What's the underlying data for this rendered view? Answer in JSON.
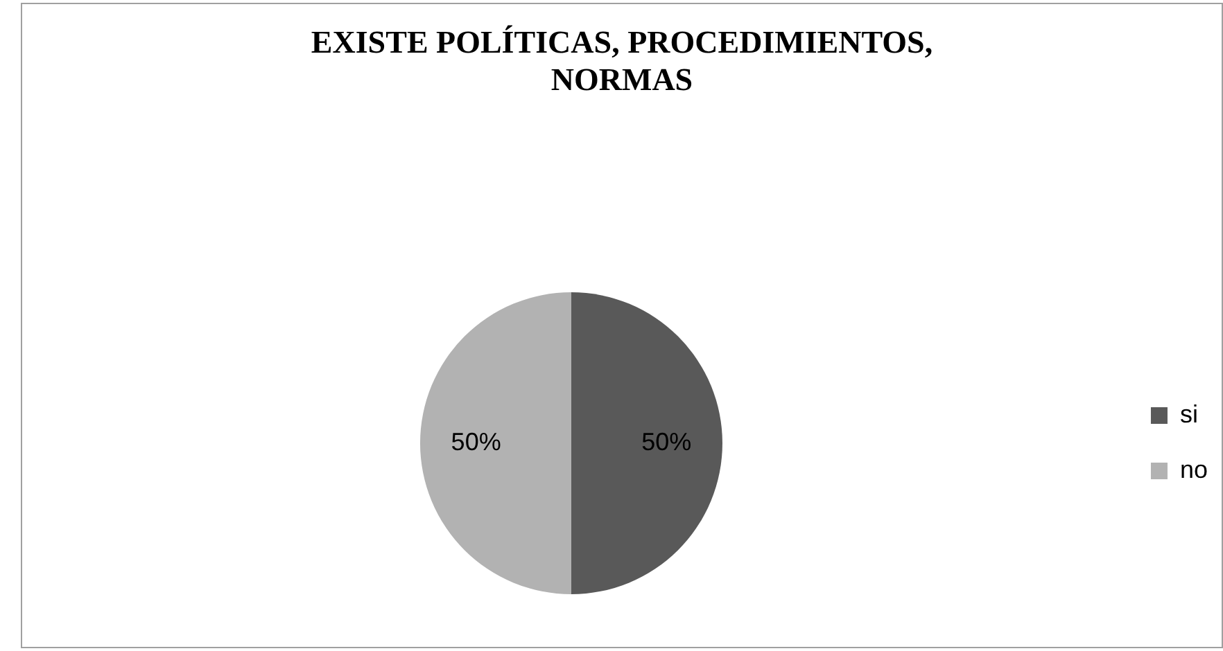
{
  "chart_data": {
    "type": "pie",
    "title": "EXISTE POLÍTICAS, PROCEDIMIENTOS, NORMAS",
    "categories": [
      "si",
      "no"
    ],
    "values": [
      50,
      50
    ],
    "colors": [
      "#595959",
      "#b2b2b2"
    ],
    "value_labels": [
      "50%",
      "50%"
    ],
    "legend": "right"
  }
}
